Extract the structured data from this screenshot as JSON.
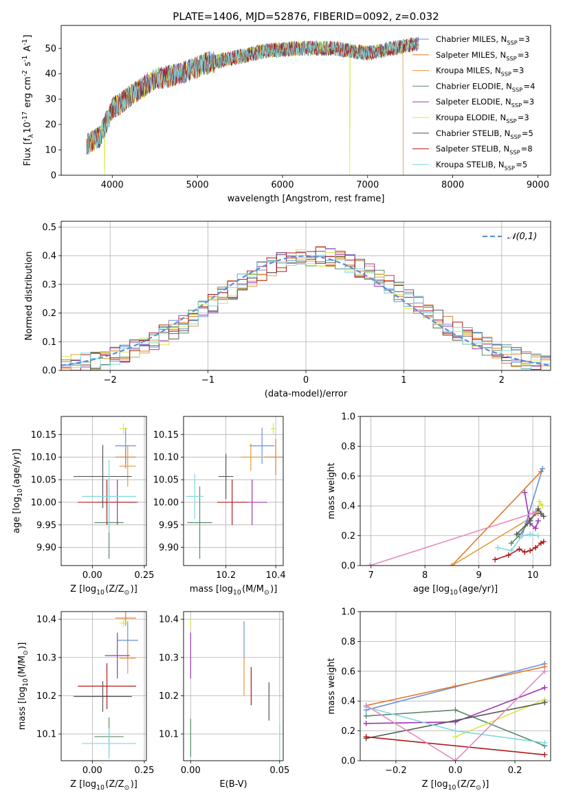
{
  "figure": {
    "title": "PLATE=1406, MJD=52876, FIBERID=0092, z=0.032",
    "background": "#ffffff"
  },
  "series": [
    {
      "name": "Chabrier MILES",
      "nssp": "3",
      "color": "#6a8fd8"
    },
    {
      "name": "Salpeter MILES",
      "nssp": "3",
      "color": "#e07a2a"
    },
    {
      "name": "Kroupa MILES",
      "nssp": "3",
      "color": "#e59a3a"
    },
    {
      "name": "Chabrier ELODIE",
      "nssp": "4",
      "color": "#5a8a6a"
    },
    {
      "name": "Salpeter ELODIE",
      "nssp": "3",
      "color": "#9b35b0"
    },
    {
      "name": "Kroupa ELODIE",
      "nssp": "3",
      "color": "#d8e840"
    },
    {
      "name": "Chabrier STELIB",
      "nssp": "5",
      "color": "#555555"
    },
    {
      "name": "Salpeter STELIB",
      "nssp": "8",
      "color": "#b01818"
    },
    {
      "name": "Kroupa STELIB",
      "nssp": "5",
      "color": "#7fd8e0"
    }
  ],
  "chart_data": [
    {
      "id": "spectrum",
      "type": "line",
      "xlabel": "wavelength [Angstrom, rest frame]",
      "ylabel": "Flux [f$_\\lambda$10$^{-17}$ erg cm$^{-2}$ s$^{-1}$ A$^{-1}$]",
      "xlim": [
        3400,
        9150
      ],
      "ylim": [
        0,
        59
      ],
      "xticks": [
        4000,
        5000,
        6000,
        7000,
        8000,
        9000
      ],
      "yticks": [
        0,
        10,
        20,
        30,
        40,
        50
      ],
      "continuum": {
        "x": [
          3700,
          3850,
          4000,
          4200,
          4500,
          4800,
          5100,
          5400,
          5800,
          6200,
          6600,
          7000,
          7300,
          7600
        ],
        "y": [
          12,
          15,
          26,
          31,
          38,
          40,
          44,
          46,
          49,
          50,
          50,
          48,
          50,
          52
        ]
      },
      "dropouts": [
        {
          "x": 3910,
          "series": "Kroupa ELODIE"
        },
        {
          "x": 6790,
          "series": "Kroupa ELODIE"
        },
        {
          "x": 7420,
          "series": "Salpeter MILES"
        }
      ],
      "legend": "upper right"
    },
    {
      "id": "residuals",
      "type": "step",
      "xlabel": "(data-model)/error",
      "ylabel": "Normed distribution",
      "xlim": [
        -2.5,
        2.5
      ],
      "ylim": [
        0,
        0.52
      ],
      "xticks": [
        -2,
        -1,
        0,
        1,
        2
      ],
      "yticks": [
        0.0,
        0.1,
        0.2,
        0.3,
        0.4,
        0.5
      ],
      "grid": true,
      "reference": {
        "name": "$\\mathcal{N}(0,1)$",
        "color": "#5b8fd6"
      },
      "legend": "upper right"
    },
    {
      "id": "z-age",
      "type": "scatter",
      "xlabel": "Z [log$_{10}$(Z/Z$_\\odot$)]",
      "ylabel": "age  [log$_{10}$(age/yr)]",
      "xlim": [
        -0.15,
        0.26
      ],
      "ylim": [
        9.86,
        10.19
      ],
      "xticks": [
        0.0,
        0.25
      ],
      "yticks": [
        9.9,
        9.95,
        10.0,
        10.05,
        10.1,
        10.15
      ],
      "grid": true,
      "points": [
        {
          "series": "Chabrier MILES",
          "x": 0.16,
          "xerr": 0.05,
          "y": 10.125,
          "yerr": 0.04
        },
        {
          "series": "Salpeter MILES",
          "x": 0.16,
          "xerr": 0.05,
          "y": 10.1,
          "yerr": 0.025
        },
        {
          "series": "Kroupa MILES",
          "x": 0.17,
          "xerr": 0.04,
          "y": 10.08,
          "yerr": 0.045
        },
        {
          "series": "Chabrier ELODIE",
          "x": 0.08,
          "xerr": 0.07,
          "y": 9.955,
          "yerr": 0.08
        },
        {
          "series": "Salpeter ELODIE",
          "x": 0.12,
          "xerr": 0.1,
          "y": 10.0,
          "yerr": 0.05
        },
        {
          "series": "Kroupa ELODIE",
          "x": 0.15,
          "xerr": 0.02,
          "y": 10.163,
          "yerr": 0.012
        },
        {
          "series": "Chabrier STELIB",
          "x": 0.05,
          "xerr": 0.14,
          "y": 10.057,
          "yerr": 0.07
        },
        {
          "series": "Salpeter STELIB",
          "x": 0.07,
          "xerr": 0.14,
          "y": 10.0,
          "yerr": 0.05
        },
        {
          "series": "Kroupa STELIB",
          "x": 0.08,
          "xerr": 0.13,
          "y": 10.013,
          "yerr": 0.08
        }
      ]
    },
    {
      "id": "mass-age",
      "type": "scatter",
      "xlabel": "mass [log$_{10}$(M/M$_\\odot$)]",
      "ylabel": "",
      "xlim": [
        10.03,
        10.43
      ],
      "ylim": [
        9.86,
        10.19
      ],
      "xticks": [
        10.2,
        10.4
      ],
      "yticks": [
        9.9,
        9.95,
        10.0,
        10.05,
        10.1,
        10.15
      ],
      "grid": true,
      "points": [
        {
          "series": "Chabrier MILES",
          "x": 10.345,
          "xerr": 0.05,
          "y": 10.125,
          "yerr": 0.04
        },
        {
          "series": "Salpeter MILES",
          "x": 10.4,
          "xerr": 0.05,
          "y": 10.1,
          "yerr": 0.04
        },
        {
          "series": "Kroupa MILES",
          "x": 10.3,
          "xerr": 0.04,
          "y": 10.1,
          "yerr": 0.03
        },
        {
          "series": "Chabrier ELODIE",
          "x": 10.095,
          "xerr": 0.05,
          "y": 9.955,
          "yerr": 0.08
        },
        {
          "series": "Salpeter ELODIE",
          "x": 10.305,
          "xerr": 0.06,
          "y": 10.0,
          "yerr": 0.05
        },
        {
          "series": "Kroupa ELODIE",
          "x": 10.39,
          "xerr": 0.01,
          "y": 10.163,
          "yerr": 0.012
        },
        {
          "series": "Chabrier STELIB",
          "x": 10.2,
          "xerr": 0.03,
          "y": 10.057,
          "yerr": 0.05
        },
        {
          "series": "Salpeter STELIB",
          "x": 10.225,
          "xerr": 0.06,
          "y": 10.0,
          "yerr": 0.05
        },
        {
          "series": "Kroupa STELIB",
          "x": 10.075,
          "xerr": 0.035,
          "y": 10.013,
          "yerr": 0.05
        }
      ]
    },
    {
      "id": "age-weight",
      "type": "line",
      "xlabel": "age  [log$_{10}$(age/yr)]",
      "ylabel": "mass weight",
      "xlim": [
        6.8,
        10.33
      ],
      "ylim": [
        0,
        1.0
      ],
      "xticks": [
        7,
        8,
        9,
        10
      ],
      "yticks": [
        0.0,
        0.2,
        0.4,
        0.6,
        0.8,
        1.0
      ],
      "grid": true,
      "series": [
        {
          "name": "Salpeter MILES",
          "x": [
            8.5,
            10.15
          ],
          "y": [
            0.0,
            0.63
          ]
        },
        {
          "name": "Kroupa MILES",
          "x": [
            8.5,
            10.1
          ],
          "y": [
            0.0,
            0.35
          ]
        },
        {
          "name": "Chabrier MILES",
          "x": [
            9.8,
            10.18
          ],
          "y": [
            0.2,
            0.65
          ]
        },
        {
          "name": "Salpeter ELODIE",
          "x": [
            9.85,
            9.95,
            10.05,
            10.1
          ],
          "y": [
            0.49,
            0.28,
            0.25,
            0.3
          ]
        },
        {
          "name": "Kroupa ELODIE",
          "x": [
            10.12,
            10.15,
            10.18
          ],
          "y": [
            0.43,
            0.41,
            0.4
          ]
        },
        {
          "name": "Chabrier ELODIE",
          "x": [
            9.6,
            9.75,
            9.9,
            10.05
          ],
          "y": [
            0.15,
            0.2,
            0.28,
            0.35
          ]
        },
        {
          "name": "Chabrier STELIB",
          "x": [
            9.7,
            9.95,
            10.1,
            10.15,
            10.2
          ],
          "y": [
            0.21,
            0.3,
            0.38,
            0.35,
            0.33
          ]
        },
        {
          "name": "Salpeter STELIB",
          "x": [
            9.3,
            9.55,
            9.75,
            9.85,
            9.95,
            10.05,
            10.15,
            10.2
          ],
          "y": [
            0.04,
            0.07,
            0.11,
            0.09,
            0.1,
            0.12,
            0.15,
            0.16
          ]
        },
        {
          "name": "Kroupa STELIB",
          "x": [
            9.35,
            9.6,
            9.8,
            9.95,
            10.1
          ],
          "y": [
            0.12,
            0.1,
            0.2,
            0.21,
            0.2
          ]
        },
        {
          "name": "Pink",
          "x": [
            6.98,
            10.0,
            10.05
          ],
          "y": [
            0.0,
            0.35,
            0.36
          ]
        }
      ]
    },
    {
      "id": "z-mass",
      "type": "scatter",
      "xlabel": "Z [log$_{10}$(Z/Z$_\\odot$)]",
      "ylabel": "mass [log$_{10}$(M/M$_\\odot$)]",
      "xlim": [
        -0.15,
        0.26
      ],
      "ylim": [
        10.03,
        10.42
      ],
      "xticks": [
        0.0,
        0.25
      ],
      "yticks": [
        10.1,
        10.2,
        10.3,
        10.4
      ],
      "grid": true,
      "points": [
        {
          "series": "Chabrier MILES",
          "x": 0.17,
          "xerr": 0.05,
          "y": 10.345,
          "yerr": 0.05
        },
        {
          "series": "Salpeter MILES",
          "x": 0.16,
          "xerr": 0.05,
          "y": 10.403,
          "yerr": 0.02
        },
        {
          "series": "Kroupa MILES",
          "x": 0.17,
          "xerr": 0.04,
          "y": 10.298,
          "yerr": 0.04
        },
        {
          "series": "Chabrier ELODIE",
          "x": 0.08,
          "xerr": 0.07,
          "y": 10.093,
          "yerr": 0.05
        },
        {
          "series": "Salpeter ELODIE",
          "x": 0.12,
          "xerr": 0.06,
          "y": 10.305,
          "yerr": 0.06
        },
        {
          "series": "Kroupa ELODIE",
          "x": 0.15,
          "xerr": 0.02,
          "y": 10.39,
          "yerr": 0.01
        },
        {
          "series": "Chabrier STELIB",
          "x": 0.05,
          "xerr": 0.14,
          "y": 10.198,
          "yerr": 0.04
        },
        {
          "series": "Salpeter STELIB",
          "x": 0.07,
          "xerr": 0.14,
          "y": 10.225,
          "yerr": 0.06
        },
        {
          "series": "Kroupa STELIB",
          "x": 0.08,
          "xerr": 0.13,
          "y": 10.075,
          "yerr": 0.04
        }
      ]
    },
    {
      "id": "ebv-mass",
      "type": "scatter",
      "xlabel": "E(B-V)",
      "ylabel": "",
      "xlim": [
        -0.004,
        0.052
      ],
      "ylim": [
        10.03,
        10.42
      ],
      "xticks": [
        0.0,
        0.05
      ],
      "yticks": [
        10.1,
        10.2,
        10.3,
        10.4
      ],
      "grid": true,
      "points": [
        {
          "series": "Chabrier MILES",
          "x": 0.03,
          "xerr": 0.0,
          "y": 10.345,
          "yerr": 0.05
        },
        {
          "series": "Salpeter MILES",
          "x": 0.024,
          "xerr": 0.0,
          "y": 10.403,
          "yerr": 0.0
        },
        {
          "series": "Kroupa MILES",
          "x": 0.03,
          "xerr": 0.0,
          "y": 10.25,
          "yerr": 0.05
        },
        {
          "series": "Chabrier ELODIE",
          "x": 0.0,
          "xerr": 0.0,
          "y": 10.09,
          "yerr": 0.05
        },
        {
          "series": "Salpeter ELODIE",
          "x": 0.0,
          "xerr": 0.0,
          "y": 10.305,
          "yerr": 0.06
        },
        {
          "series": "Kroupa ELODIE",
          "x": 0.0,
          "xerr": 0.0,
          "y": 10.39,
          "yerr": 0.01
        },
        {
          "series": "Chabrier STELIB",
          "x": 0.044,
          "xerr": 0.0,
          "y": 10.185,
          "yerr": 0.05
        },
        {
          "series": "Salpeter STELIB",
          "x": 0.034,
          "xerr": 0.0,
          "y": 10.225,
          "yerr": 0.05
        },
        {
          "series": "Kroupa STELIB",
          "x": 0.05,
          "xerr": 0.0,
          "y": 10.075,
          "yerr": 0.05
        }
      ]
    },
    {
      "id": "z-weight",
      "type": "line",
      "xlabel": "Z [log$_{10}$(Z/Z$_\\odot$)]",
      "ylabel": "mass weight",
      "xlim": [
        -0.32,
        0.32
      ],
      "ylim": [
        0,
        1.0
      ],
      "xticks": [
        -0.2,
        0.0,
        0.2
      ],
      "yticks": [
        0.0,
        0.2,
        0.4,
        0.6,
        0.8,
        1.0
      ],
      "grid": true,
      "series": [
        {
          "name": "Chabrier MILES",
          "x": [
            -0.3,
            0.3
          ],
          "y": [
            0.34,
            0.65
          ]
        },
        {
          "name": "Salpeter MILES",
          "x": [
            -0.3,
            0.0,
            0.3
          ],
          "y": [
            0.37,
            0.5,
            0.63
          ]
        },
        {
          "name": "Chabrier ELODIE",
          "x": [
            -0.3,
            0.0,
            0.3
          ],
          "y": [
            0.3,
            0.34,
            0.1
          ]
        },
        {
          "name": "Salpeter ELODIE",
          "x": [
            -0.3,
            0.0,
            0.3
          ],
          "y": [
            0.25,
            0.26,
            0.49
          ]
        },
        {
          "name": "Kroupa ELODIE",
          "x": [
            0.0,
            0.3
          ],
          "y": [
            0.16,
            0.41
          ]
        },
        {
          "name": "Chabrier STELIB",
          "x": [
            -0.3,
            0.3
          ],
          "y": [
            0.15,
            0.39
          ]
        },
        {
          "name": "Salpeter STELIB",
          "x": [
            -0.3,
            0.3
          ],
          "y": [
            0.16,
            0.04
          ]
        },
        {
          "name": "Kroupa STELIB",
          "x": [
            -0.3,
            0.0,
            0.3
          ],
          "y": [
            0.36,
            0.2,
            0.12
          ]
        },
        {
          "name": "Pink",
          "x": [
            -0.3,
            0.0,
            0.3
          ],
          "y": [
            0.37,
            0.0,
            0.6
          ]
        }
      ]
    }
  ]
}
